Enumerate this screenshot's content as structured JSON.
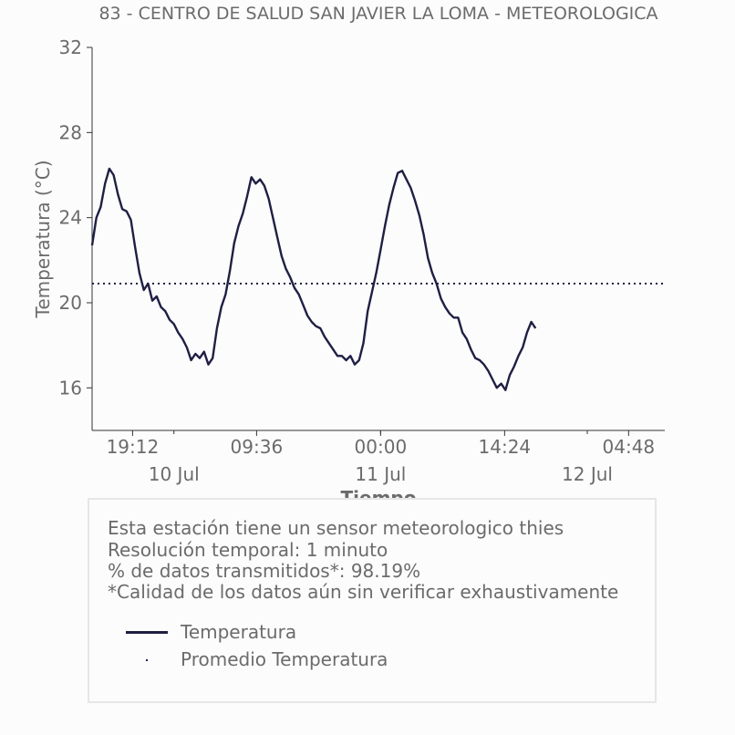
{
  "chart_data": {
    "type": "line",
    "title": "83 - CENTRO DE SALUD SAN JAVIER LA LOMA - METEOROLOGICA",
    "xlabel": "Tiempo",
    "ylabel": "Temperatura (°C)",
    "ylim": [
      14,
      32
    ],
    "yticks": [
      "16",
      "20",
      "24",
      "28",
      "32"
    ],
    "xticks": [
      "19:12",
      "09:36",
      "00:00",
      "14:24",
      "04:48"
    ],
    "date_labels": [
      "10 Jul",
      "11 Jul",
      "12 Jul"
    ],
    "grid": false,
    "x_start": "2023-07-09 14:30",
    "x_end": "2023-07-12 09:00",
    "series": [
      {
        "name": "Temperatura",
        "color": "#1f1f44",
        "points": [
          [
            "2023-07-09 14:30",
            22.7
          ],
          [
            "2023-07-09 15:00",
            24.0
          ],
          [
            "2023-07-09 15:30",
            24.5
          ],
          [
            "2023-07-09 16:00",
            25.6
          ],
          [
            "2023-07-09 16:30",
            26.3
          ],
          [
            "2023-07-09 17:00",
            26.0
          ],
          [
            "2023-07-09 17:30",
            25.1
          ],
          [
            "2023-07-09 18:00",
            24.4
          ],
          [
            "2023-07-09 18:30",
            24.3
          ],
          [
            "2023-07-09 19:00",
            23.9
          ],
          [
            "2023-07-09 19:30",
            22.6
          ],
          [
            "2023-07-09 20:00",
            21.4
          ],
          [
            "2023-07-09 20:30",
            20.6
          ],
          [
            "2023-07-09 21:00",
            20.9
          ],
          [
            "2023-07-09 21:30",
            20.1
          ],
          [
            "2023-07-09 22:00",
            20.3
          ],
          [
            "2023-07-09 22:30",
            19.8
          ],
          [
            "2023-07-09 23:00",
            19.6
          ],
          [
            "2023-07-09 23:30",
            19.2
          ],
          [
            "2023-07-10 00:00",
            19.0
          ],
          [
            "2023-07-10 00:30",
            18.6
          ],
          [
            "2023-07-10 01:00",
            18.3
          ],
          [
            "2023-07-10 01:30",
            17.9
          ],
          [
            "2023-07-10 02:00",
            17.3
          ],
          [
            "2023-07-10 02:30",
            17.6
          ],
          [
            "2023-07-10 03:00",
            17.4
          ],
          [
            "2023-07-10 03:30",
            17.7
          ],
          [
            "2023-07-10 04:00",
            17.1
          ],
          [
            "2023-07-10 04:30",
            17.4
          ],
          [
            "2023-07-10 05:00",
            18.8
          ],
          [
            "2023-07-10 05:30",
            19.8
          ],
          [
            "2023-07-10 06:00",
            20.4
          ],
          [
            "2023-07-10 06:30",
            21.5
          ],
          [
            "2023-07-10 07:00",
            22.8
          ],
          [
            "2023-07-10 07:30",
            23.6
          ],
          [
            "2023-07-10 08:00",
            24.2
          ],
          [
            "2023-07-10 08:30",
            25.0
          ],
          [
            "2023-07-10 09:00",
            25.9
          ],
          [
            "2023-07-10 09:30",
            25.6
          ],
          [
            "2023-07-10 10:00",
            25.8
          ],
          [
            "2023-07-10 10:30",
            25.5
          ],
          [
            "2023-07-10 11:00",
            24.9
          ],
          [
            "2023-07-10 11:30",
            24.0
          ],
          [
            "2023-07-10 12:00",
            23.1
          ],
          [
            "2023-07-10 12:30",
            22.2
          ],
          [
            "2023-07-10 13:00",
            21.6
          ],
          [
            "2023-07-10 13:30",
            21.2
          ],
          [
            "2023-07-10 14:00",
            20.7
          ],
          [
            "2023-07-10 14:30",
            20.4
          ],
          [
            "2023-07-10 15:00",
            19.9
          ],
          [
            "2023-07-10 15:30",
            19.4
          ],
          [
            "2023-07-10 16:00",
            19.1
          ],
          [
            "2023-07-10 16:30",
            18.9
          ],
          [
            "2023-07-10 17:00",
            18.8
          ],
          [
            "2023-07-10 17:30",
            18.4
          ],
          [
            "2023-07-10 18:00",
            18.1
          ],
          [
            "2023-07-10 18:30",
            17.8
          ],
          [
            "2023-07-10 19:00",
            17.5
          ],
          [
            "2023-07-10 19:30",
            17.5
          ],
          [
            "2023-07-10 20:00",
            17.3
          ],
          [
            "2023-07-10 20:30",
            17.5
          ],
          [
            "2023-07-10 21:00",
            17.1
          ],
          [
            "2023-07-10 21:30",
            17.3
          ],
          [
            "2023-07-10 22:00",
            18.1
          ],
          [
            "2023-07-10 22:30",
            19.6
          ],
          [
            "2023-07-10 23:00",
            20.5
          ],
          [
            "2023-07-10 23:30",
            21.4
          ],
          [
            "2023-07-11 00:00",
            22.5
          ],
          [
            "2023-07-11 00:30",
            23.6
          ],
          [
            "2023-07-11 01:00",
            24.6
          ],
          [
            "2023-07-11 01:30",
            25.4
          ],
          [
            "2023-07-11 02:00",
            26.1
          ],
          [
            "2023-07-11 02:30",
            26.2
          ],
          [
            "2023-07-11 03:00",
            25.8
          ],
          [
            "2023-07-11 03:30",
            25.4
          ],
          [
            "2023-07-11 04:00",
            24.8
          ],
          [
            "2023-07-11 04:30",
            24.1
          ],
          [
            "2023-07-11 05:00",
            23.2
          ],
          [
            "2023-07-11 05:30",
            22.1
          ],
          [
            "2023-07-11 06:00",
            21.4
          ],
          [
            "2023-07-11 06:30",
            20.9
          ],
          [
            "2023-07-11 07:00",
            20.2
          ],
          [
            "2023-07-11 07:30",
            19.8
          ],
          [
            "2023-07-11 08:00",
            19.5
          ],
          [
            "2023-07-11 08:30",
            19.3
          ],
          [
            "2023-07-11 09:00",
            19.3
          ],
          [
            "2023-07-11 09:30",
            18.6
          ],
          [
            "2023-07-11 10:00",
            18.3
          ],
          [
            "2023-07-11 10:30",
            17.8
          ],
          [
            "2023-07-11 11:00",
            17.4
          ],
          [
            "2023-07-11 11:30",
            17.3
          ],
          [
            "2023-07-11 12:00",
            17.1
          ],
          [
            "2023-07-11 12:30",
            16.8
          ],
          [
            "2023-07-11 13:00",
            16.4
          ],
          [
            "2023-07-11 13:30",
            16.0
          ],
          [
            "2023-07-11 14:00",
            16.2
          ],
          [
            "2023-07-11 14:30",
            15.9
          ],
          [
            "2023-07-11 15:00",
            16.6
          ],
          [
            "2023-07-11 15:30",
            17.0
          ],
          [
            "2023-07-11 16:00",
            17.5
          ],
          [
            "2023-07-11 16:30",
            17.9
          ],
          [
            "2023-07-11 17:00",
            18.6
          ],
          [
            "2023-07-11 17:30",
            19.1
          ],
          [
            "2023-07-11 18:00",
            18.8
          ]
        ]
      },
      {
        "name": "Promedio Temperatura",
        "color": "#1f1f44",
        "style": "dotted",
        "value": 20.9
      }
    ]
  },
  "info": {
    "line1": "Esta estación tiene un sensor meteorologico thies",
    "line2": "Resolución temporal: 1 minuto",
    "line3": "% de datos transmitidos*: 98.19%",
    "line4": "*Calidad de los datos aún sin verificar exhaustivamente"
  },
  "legend": {
    "temp_label": "Temperatura",
    "avg_label": "Promedio Temperatura"
  }
}
